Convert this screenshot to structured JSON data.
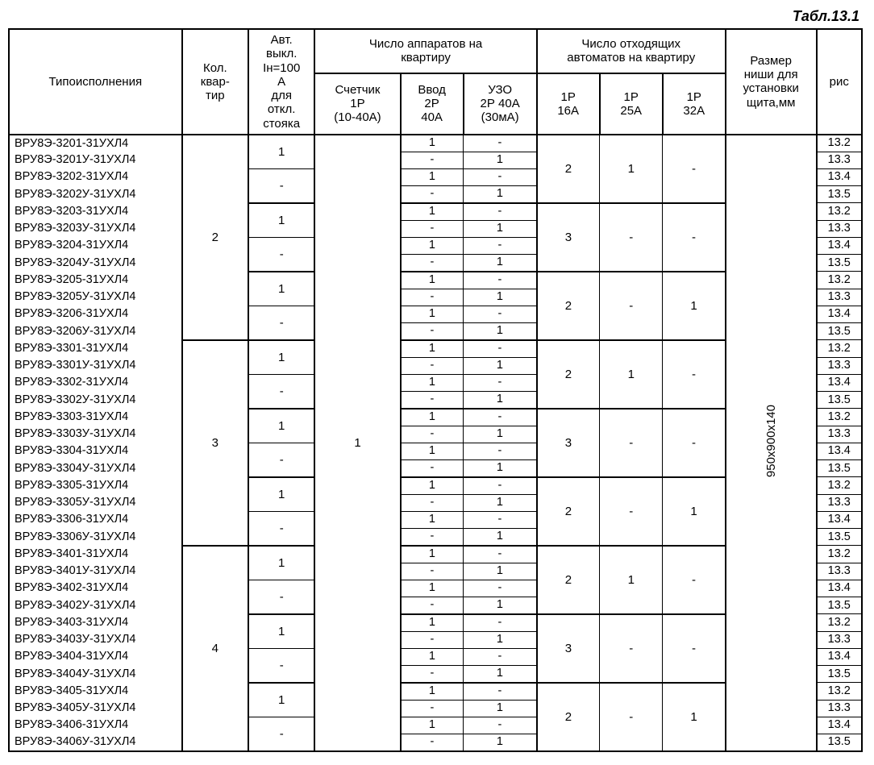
{
  "title": "Табл.13.1",
  "headers": {
    "model": "Типоисполнения",
    "kol": "Кол.\nквар-\nтир",
    "avt": "Авт.\nвыкл.\nIн=100\nА\nдля\nоткл.\nстояка",
    "apparaty_group": "Число аппаратов на\nквартиру",
    "schetchik": "Счетчик\n1Р\n(10-40А)",
    "vvod": "Ввод\n2Р\n40А",
    "uzo": "УЗО\n2Р 40А\n(30мА)",
    "otkhod_group": "Число отходящих\nавтоматов на квартиру",
    "p16": "1Р\n16А",
    "p25": "1Р\n25А",
    "p32": "1Р\n32А",
    "razmer": "Размер\nниши для\nустановки\nщита,мм",
    "ris": "рис"
  },
  "schetchik_value": "1",
  "razmer_value": "950х900х140",
  "colwidths": {
    "model": 198,
    "kol": 76,
    "avt": 76,
    "schetchik": 98,
    "vvod": 72,
    "uzo": 84,
    "p16": 72,
    "p25": 72,
    "p32": 72,
    "razmer": 104,
    "ris": 52
  },
  "big_blocks": [
    {
      "kol": "2",
      "sets": [
        {
          "pair_top_avt": "1",
          "pair_bot_avt": "-",
          "p16": "2",
          "p25": "1",
          "p32": "-",
          "rows": [
            {
              "model": "ВРУ8Э-3201-31УХЛ4",
              "vvod": "1",
              "uzo": "-",
              "ris": "13.2"
            },
            {
              "model": "ВРУ8Э-3201У-31УХЛ4",
              "vvod": "-",
              "uzo": "1",
              "ris": "13.3"
            },
            {
              "model": "ВРУ8Э-3202-31УХЛ4",
              "vvod": "1",
              "uzo": "-",
              "ris": "13.4"
            },
            {
              "model": "ВРУ8Э-3202У-31УХЛ4",
              "vvod": "-",
              "uzo": "1",
              "ris": "13.5"
            }
          ]
        },
        {
          "pair_top_avt": "1",
          "pair_bot_avt": "-",
          "p16": "3",
          "p25": "-",
          "p32": "-",
          "rows": [
            {
              "model": "ВРУ8Э-3203-31УХЛ4",
              "vvod": "1",
              "uzo": "-",
              "ris": "13.2"
            },
            {
              "model": "ВРУ8Э-3203У-31УХЛ4",
              "vvod": "-",
              "uzo": "1",
              "ris": "13.3"
            },
            {
              "model": "ВРУ8Э-3204-31УХЛ4",
              "vvod": "1",
              "uzo": "-",
              "ris": "13.4"
            },
            {
              "model": "ВРУ8Э-3204У-31УХЛ4",
              "vvod": "-",
              "uzo": "1",
              "ris": "13.5"
            }
          ]
        },
        {
          "pair_top_avt": "1",
          "pair_bot_avt": "-",
          "p16": "2",
          "p25": "-",
          "p32": "1",
          "rows": [
            {
              "model": "ВРУ8Э-3205-31УХЛ4",
              "vvod": "1",
              "uzo": "-",
              "ris": "13.2"
            },
            {
              "model": "ВРУ8Э-3205У-31УХЛ4",
              "vvod": "-",
              "uzo": "1",
              "ris": "13.3"
            },
            {
              "model": "ВРУ8Э-3206-31УХЛ4",
              "vvod": "1",
              "uzo": "-",
              "ris": "13.4"
            },
            {
              "model": "ВРУ8Э-3206У-31УХЛ4",
              "vvod": "-",
              "uzo": "1",
              "ris": "13.5"
            }
          ]
        }
      ]
    },
    {
      "kol": "3",
      "sets": [
        {
          "pair_top_avt": "1",
          "pair_bot_avt": "-",
          "p16": "2",
          "p25": "1",
          "p32": "-",
          "rows": [
            {
              "model": "ВРУ8Э-3301-31УХЛ4",
              "vvod": "1",
              "uzo": "-",
              "ris": "13.2"
            },
            {
              "model": "ВРУ8Э-3301У-31УХЛ4",
              "vvod": "-",
              "uzo": "1",
              "ris": "13.3"
            },
            {
              "model": "ВРУ8Э-3302-31УХЛ4",
              "vvod": "1",
              "uzo": "-",
              "ris": "13.4"
            },
            {
              "model": "ВРУ8Э-3302У-31УХЛ4",
              "vvod": "-",
              "uzo": "1",
              "ris": "13.5"
            }
          ]
        },
        {
          "pair_top_avt": "1",
          "pair_bot_avt": "-",
          "p16": "3",
          "p25": "-",
          "p32": "-",
          "rows": [
            {
              "model": "ВРУ8Э-3303-31УХЛ4",
              "vvod": "1",
              "uzo": "-",
              "ris": "13.2"
            },
            {
              "model": "ВРУ8Э-3303У-31УХЛ4",
              "vvod": "-",
              "uzo": "1",
              "ris": "13.3"
            },
            {
              "model": "ВРУ8Э-3304-31УХЛ4",
              "vvod": "1",
              "uzo": "-",
              "ris": "13.4"
            },
            {
              "model": "ВРУ8Э-3304У-31УХЛ4",
              "vvod": "-",
              "uzo": "1",
              "ris": "13.5"
            }
          ]
        },
        {
          "pair_top_avt": "1",
          "pair_bot_avt": "-",
          "p16": "2",
          "p25": "-",
          "p32": "1",
          "rows": [
            {
              "model": "ВРУ8Э-3305-31УХЛ4",
              "vvod": "1",
              "uzo": "-",
              "ris": "13.2"
            },
            {
              "model": "ВРУ8Э-3305У-31УХЛ4",
              "vvod": "-",
              "uzo": "1",
              "ris": "13.3"
            },
            {
              "model": "ВРУ8Э-3306-31УХЛ4",
              "vvod": "1",
              "uzo": "-",
              "ris": "13.4"
            },
            {
              "model": "ВРУ8Э-3306У-31УХЛ4",
              "vvod": "-",
              "uzo": "1",
              "ris": "13.5"
            }
          ]
        }
      ]
    },
    {
      "kol": "4",
      "sets": [
        {
          "pair_top_avt": "1",
          "pair_bot_avt": "-",
          "p16": "2",
          "p25": "1",
          "p32": "-",
          "rows": [
            {
              "model": "ВРУ8Э-3401-31УХЛ4",
              "vvod": "1",
              "uzo": "-",
              "ris": "13.2"
            },
            {
              "model": "ВРУ8Э-3401У-31УХЛ4",
              "vvod": "-",
              "uzo": "1",
              "ris": "13.3"
            },
            {
              "model": "ВРУ8Э-3402-31УХЛ4",
              "vvod": "1",
              "uzo": "-",
              "ris": "13.4"
            },
            {
              "model": "ВРУ8Э-3402У-31УХЛ4",
              "vvod": "-",
              "uzo": "1",
              "ris": "13.5"
            }
          ]
        },
        {
          "pair_top_avt": "1",
          "pair_bot_avt": "-",
          "p16": "3",
          "p25": "-",
          "p32": "-",
          "rows": [
            {
              "model": "ВРУ8Э-3403-31УХЛ4",
              "vvod": "1",
              "uzo": "-",
              "ris": "13.2"
            },
            {
              "model": "ВРУ8Э-3403У-31УХЛ4",
              "vvod": "-",
              "uzo": "1",
              "ris": "13.3"
            },
            {
              "model": "ВРУ8Э-3404-31УХЛ4",
              "vvod": "1",
              "uzo": "-",
              "ris": "13.4"
            },
            {
              "model": "ВРУ8Э-3404У-31УХЛ4",
              "vvod": "-",
              "uzo": "1",
              "ris": "13.5"
            }
          ]
        },
        {
          "pair_top_avt": "1",
          "pair_bot_avt": "-",
          "p16": "2",
          "p25": "-",
          "p32": "1",
          "rows": [
            {
              "model": "ВРУ8Э-3405-31УХЛ4",
              "vvod": "1",
              "uzo": "-",
              "ris": "13.2"
            },
            {
              "model": "ВРУ8Э-3405У-31УХЛ4",
              "vvod": "-",
              "uzo": "1",
              "ris": "13.3"
            },
            {
              "model": "ВРУ8Э-3406-31УХЛ4",
              "vvod": "1",
              "uzo": "-",
              "ris": "13.4"
            },
            {
              "model": "ВРУ8Э-3406У-31УХЛ4",
              "vvod": "-",
              "uzo": "1",
              "ris": "13.5"
            }
          ]
        }
      ]
    }
  ]
}
